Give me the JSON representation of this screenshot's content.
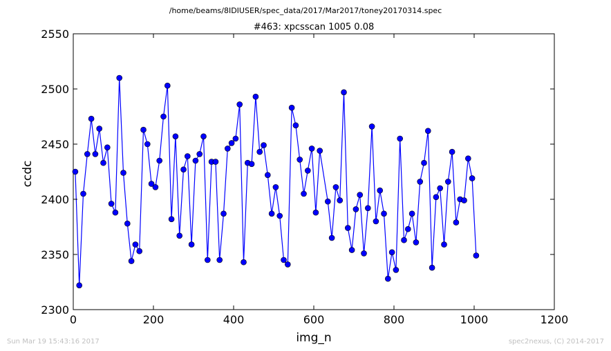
{
  "chart_data": {
    "type": "line",
    "suptitle": "/home/beams/8IDIUSER/spec_data/2017/Mar2017/toney20170314.spec",
    "title": "#463: xpcsscan 1005 0.08",
    "xlabel": "img_n",
    "ylabel": "ccdc",
    "xlim": [
      0,
      1200
    ],
    "ylim": [
      2300,
      2550
    ],
    "xticks": [
      0,
      200,
      400,
      600,
      800,
      1000,
      1200
    ],
    "yticks": [
      2300,
      2350,
      2400,
      2450,
      2500,
      2550
    ],
    "grid": false,
    "marker": "circle",
    "color": "#0000ff",
    "series": [
      {
        "x": [
          5,
          15,
          25,
          35,
          45,
          55,
          65,
          75,
          85,
          95,
          105,
          115,
          125,
          135,
          145,
          155,
          165,
          175,
          185,
          195,
          205,
          215,
          225,
          235,
          245,
          255,
          265,
          275,
          285,
          295,
          305,
          315,
          325,
          335,
          345,
          355,
          365,
          375,
          385,
          395,
          405,
          415,
          425,
          435,
          445,
          455,
          465,
          475,
          485,
          495,
          505,
          515,
          525,
          535,
          545,
          555,
          565,
          575,
          585,
          595,
          605,
          615,
          635,
          645,
          655,
          665,
          675,
          685,
          695,
          705,
          715,
          725,
          735,
          745,
          755,
          765,
          775,
          785,
          795,
          805,
          815,
          825,
          835,
          845,
          855,
          865,
          875,
          885,
          895,
          905,
          915,
          925,
          935,
          945,
          955,
          965,
          975,
          985,
          995,
          1005
        ],
        "y": [
          2425,
          2322,
          2405,
          2441,
          2473,
          2441,
          2464,
          2433,
          2447,
          2396,
          2388,
          2510,
          2424,
          2378,
          2344,
          2359,
          2353,
          2463,
          2450,
          2414,
          2411,
          2435,
          2475,
          2503,
          2382,
          2457,
          2367,
          2427,
          2439,
          2359,
          2435,
          2441,
          2457,
          2345,
          2434,
          2434,
          2345,
          2387,
          2446,
          2451,
          2455,
          2486,
          2343,
          2433,
          2432,
          2493,
          2443,
          2449,
          2422,
          2387,
          2411,
          2385,
          2345,
          2341,
          2483,
          2467,
          2436,
          2405,
          2426,
          2446,
          2388,
          2444,
          2398,
          2365,
          2411,
          2399,
          2497,
          2374,
          2354,
          2391,
          2404,
          2351,
          2392,
          2466,
          2380,
          2408,
          2387,
          2328,
          2352,
          2336,
          2455,
          2363,
          2373,
          2387,
          2361,
          2416,
          2433,
          2462,
          2338,
          2402,
          2410,
          2359,
          2416,
          2443,
          2379,
          2400,
          2399,
          2437,
          2419,
          2349
        ]
      }
    ]
  },
  "footer": {
    "left": "Sun Mar 19 15:43:16 2017",
    "right": "spec2nexus, (C) 2014-2017"
  }
}
